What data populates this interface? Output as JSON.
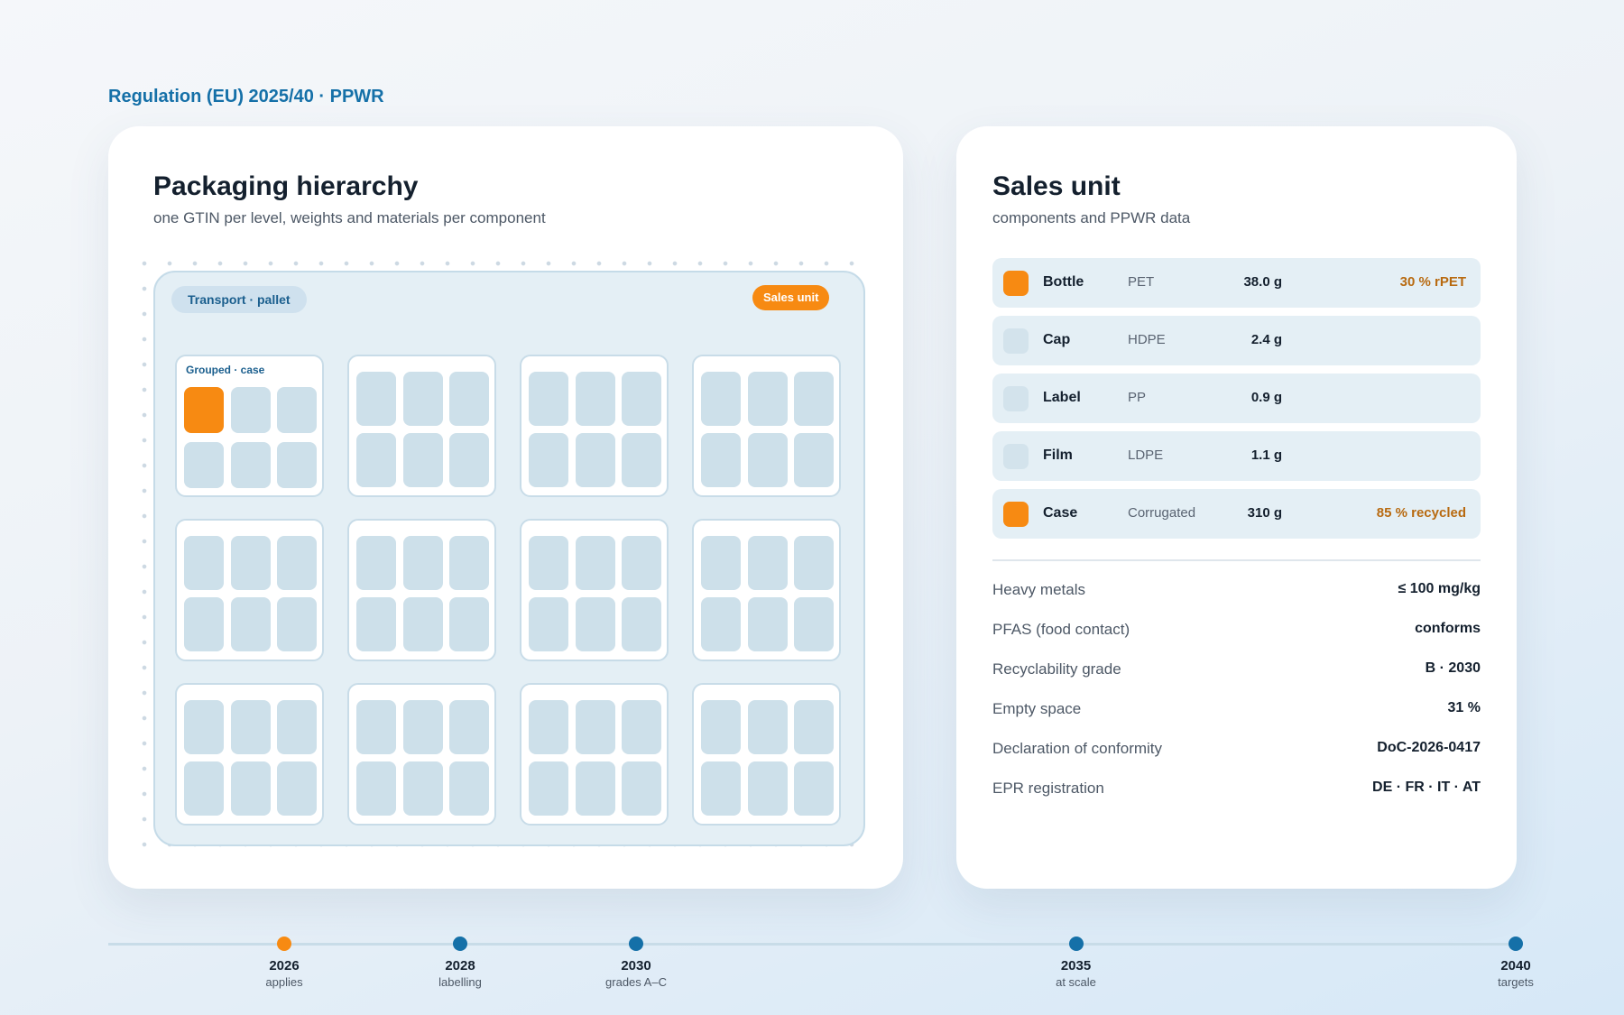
{
  "header": {
    "regulation": "Regulation (EU) 2025/40 · PPWR"
  },
  "hierarchy_card": {
    "title": "Packaging hierarchy",
    "subtitle": "one GTIN per level, weights and materials per component",
    "pallet_label": "Transport · pallet",
    "sales_badge": "Sales unit",
    "case_label": "Grouped · case",
    "cases_rows": 3,
    "cases_per_row": 4,
    "units_per_case": 6
  },
  "sales_card": {
    "title": "Sales unit",
    "subtitle": "components and PPWR data",
    "components": [
      {
        "name": "Bottle",
        "material": "PET",
        "weight": "38.0 g",
        "note": "30 % rPET",
        "swatch": "#f78a12"
      },
      {
        "name": "Cap",
        "material": "HDPE",
        "weight": "2.4 g",
        "note": "",
        "swatch": "#d3e3ec"
      },
      {
        "name": "Label",
        "material": "PP",
        "weight": "0.9 g",
        "note": "",
        "swatch": "#d3e3ec"
      },
      {
        "name": "Film",
        "material": "LDPE",
        "weight": "1.1 g",
        "note": "",
        "swatch": "#d3e3ec"
      },
      {
        "name": "Case",
        "material": "Corrugated",
        "weight": "310 g",
        "note": "85 % recycled",
        "swatch": "#f78a12"
      }
    ],
    "properties": [
      {
        "label": "Heavy metals",
        "value": "≤ 100 mg/kg"
      },
      {
        "label": "PFAS (food contact)",
        "value": "conforms"
      },
      {
        "label": "Recyclability grade",
        "value": "B · 2030"
      },
      {
        "label": "Empty space",
        "value": "31 %"
      },
      {
        "label": "Declaration of conformity",
        "value": "DoC-2026-0417"
      },
      {
        "label": "EPR registration",
        "value": "DE · FR · IT · AT"
      }
    ]
  },
  "timeline": [
    {
      "year": "2026",
      "label": "applies",
      "highlight": true
    },
    {
      "year": "2028",
      "label": "labelling",
      "highlight": false
    },
    {
      "year": "2030",
      "label": "grades A–C",
      "highlight": false
    },
    {
      "year": "2035",
      "label": "at scale",
      "highlight": false
    },
    {
      "year": "2040",
      "label": "targets",
      "highlight": false
    }
  ],
  "colors": {
    "accent": "#1570a8",
    "highlight": "#f78a12",
    "note": "#b86a10"
  }
}
